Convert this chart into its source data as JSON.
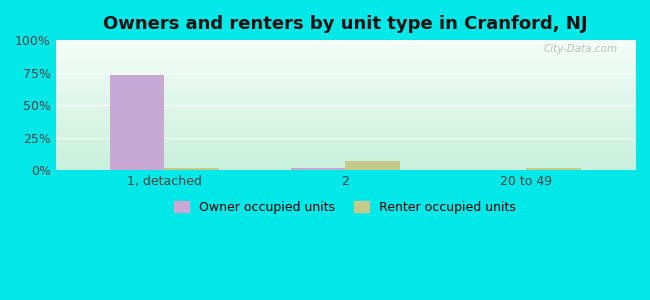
{
  "title": "Owners and renters by unit type in Cranford, NJ",
  "categories": [
    "1, detached",
    "2",
    "20 to 49"
  ],
  "owner_values": [
    73,
    2,
    0.5
  ],
  "renter_values": [
    2,
    7,
    1.5
  ],
  "owner_color": "#c9a8d4",
  "renter_color": "#c5c98a",
  "outer_background": "#00e8e8",
  "grad_top": "#f5fdf8",
  "grad_bottom": "#c8f0dc",
  "title_fontsize": 13,
  "yticks": [
    0,
    25,
    50,
    75,
    100
  ],
  "ytick_labels": [
    "0%",
    "25%",
    "50%",
    "75%",
    "100%"
  ],
  "ylim": [
    0,
    100
  ],
  "bar_width": 0.3,
  "watermark": "City-Data.com",
  "legend_owner": "Owner occupied units",
  "legend_renter": "Renter occupied units"
}
